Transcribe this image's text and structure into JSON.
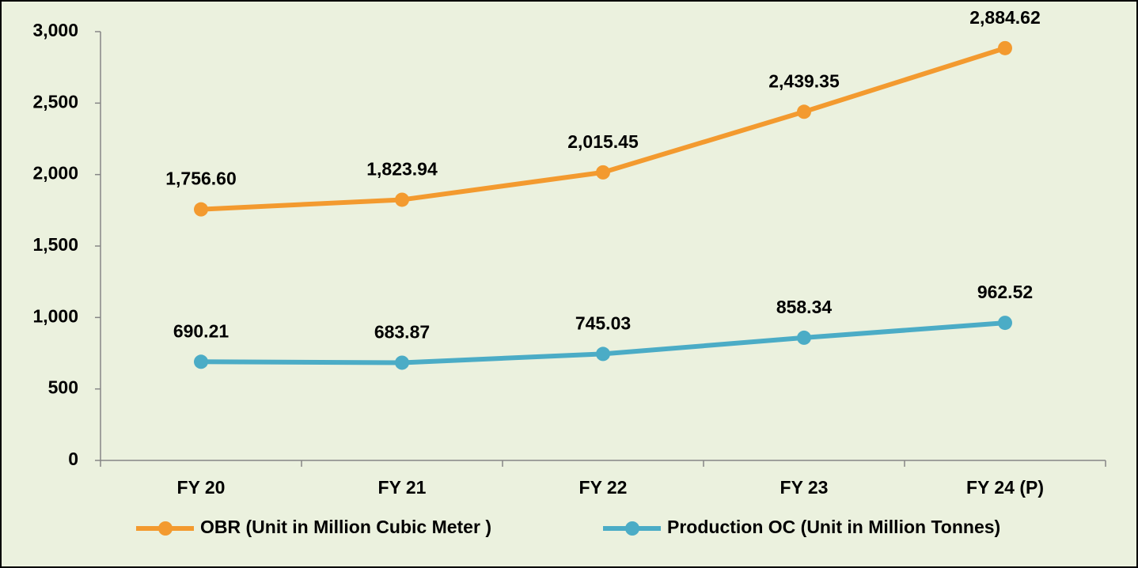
{
  "chart_data": {
    "type": "line",
    "categories": [
      "FY 20",
      "FY 21",
      "FY 22",
      "FY 23",
      "FY 24 (P)"
    ],
    "series": [
      {
        "name": "OBR (Unit in Million Cubic Meter )",
        "color": "#f39a2f",
        "values": [
          1756.6,
          1823.94,
          2015.45,
          2439.35,
          2884.62
        ],
        "value_labels": [
          "1,756.60",
          "1,823.94",
          "2,015.45",
          "2,439.35",
          "2,884.62"
        ]
      },
      {
        "name": "Production OC (Unit in Million Tonnes)",
        "color": "#4bacc6",
        "values": [
          690.21,
          683.87,
          745.03,
          858.34,
          962.52
        ]
      }
    ],
    "ylim": [
      0,
      3000
    ],
    "yticks": [
      0,
      500,
      {
        "value": 1000,
        "label": "1,000"
      },
      {
        "value": 1500,
        "label": "1,500"
      },
      {
        "value": 2000,
        "label": "2,000"
      },
      {
        "value": 2500,
        "label": "2,500"
      },
      {
        "value": 3000,
        "label": "3,000"
      }
    ],
    "grid": false,
    "legend": "bottom"
  }
}
